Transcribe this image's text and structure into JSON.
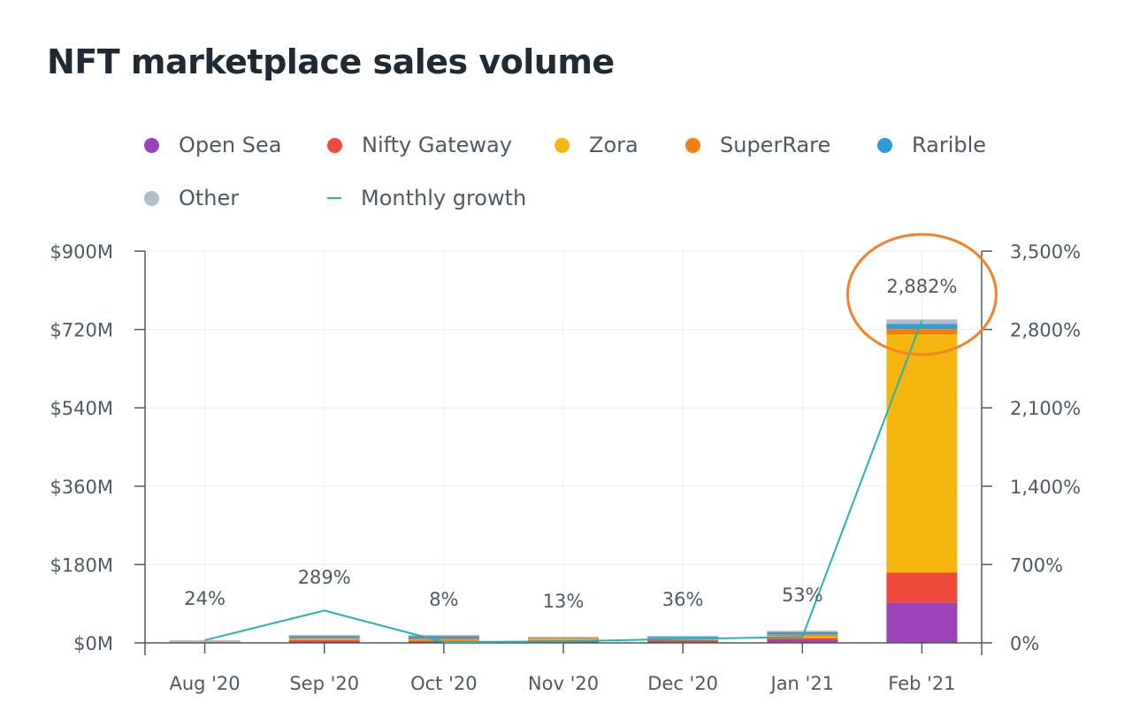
{
  "chart_data": {
    "type": "bar",
    "stacked": true,
    "title": "NFT marketplace sales volume",
    "categories": [
      "Aug '20",
      "Sep '20",
      "Oct '20",
      "Nov '20",
      "Dec '20",
      "Jan '21",
      "Feb '21"
    ],
    "series": [
      {
        "name": "Open Sea",
        "color": "#9b42b8",
        "values": [
          1,
          4,
          3,
          4,
          4,
          8,
          93
        ]
      },
      {
        "name": "Nifty Gateway",
        "color": "#ef4b3c",
        "values": [
          0,
          2,
          2,
          2,
          2,
          3,
          69
        ]
      },
      {
        "name": "Zora",
        "color": "#f4b60f",
        "values": [
          0,
          3,
          2,
          3,
          3,
          5,
          547
        ]
      },
      {
        "name": "SuperRare",
        "color": "#f47c10",
        "values": [
          1,
          3,
          3,
          2,
          3,
          4,
          12
        ]
      },
      {
        "name": "Rarible",
        "color": "#2e9bdb",
        "values": [
          0,
          4,
          6,
          1,
          2,
          5,
          12
        ]
      },
      {
        "name": "Other",
        "color": "#b0bec5",
        "values": [
          4,
          2,
          2,
          2,
          2,
          3,
          10
        ]
      }
    ],
    "line_series": {
      "name": "Monthly growth",
      "color": "#22b5ab",
      "axis": "right",
      "values": [
        24,
        289,
        8,
        13,
        36,
        53,
        2882
      ],
      "labels": [
        "24%",
        "289%",
        "8%",
        "13%",
        "36%",
        "53%",
        "2,882%"
      ]
    },
    "y_left": {
      "ylim": [
        0,
        900
      ],
      "ticks": [
        0,
        180,
        360,
        540,
        720,
        900
      ],
      "tick_labels": [
        "$0M",
        "$180M",
        "$360M",
        "$540M",
        "$720M",
        "$900M"
      ],
      "unit": "$M"
    },
    "y_right": {
      "ylim": [
        0,
        3500
      ],
      "ticks": [
        0,
        700,
        1400,
        2100,
        2800,
        3500
      ],
      "tick_labels": [
        "0%",
        "700%",
        "1,400%",
        "2,100%",
        "2,800%",
        "3,500%"
      ],
      "unit": "%"
    },
    "grid": true,
    "legend": {
      "placement": "top-left"
    },
    "annotation": {
      "type": "ellipse-highlight",
      "target": "Feb '21",
      "label": "2,882%",
      "color": "#f4822a"
    }
  }
}
